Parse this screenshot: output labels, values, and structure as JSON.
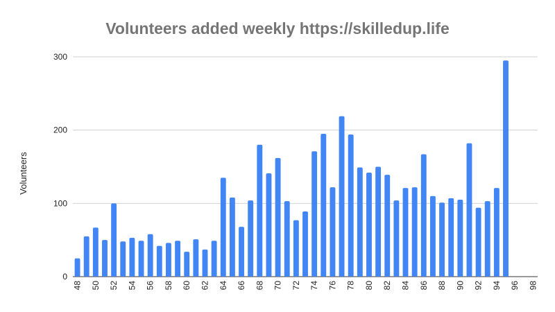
{
  "chart_data": {
    "type": "bar",
    "title": "Volunteers added weekly https://skilledup.life",
    "xlabel": "",
    "ylabel": "Volunteers",
    "ylim": [
      0,
      300
    ],
    "yticks": [
      0,
      100,
      200,
      300
    ],
    "grid": true,
    "bar_color": "#4285f4",
    "categories": [
      48,
      49,
      50,
      51,
      52,
      53,
      54,
      55,
      56,
      57,
      58,
      59,
      60,
      61,
      62,
      63,
      64,
      65,
      66,
      67,
      68,
      69,
      70,
      71,
      72,
      73,
      74,
      75,
      76,
      77,
      78,
      79,
      80,
      81,
      82,
      83,
      84,
      85,
      86,
      87,
      88,
      89,
      90,
      91,
      92,
      93,
      94,
      95,
      96,
      97,
      98
    ],
    "xtick_labels": [
      "48",
      "50",
      "52",
      "54",
      "56",
      "58",
      "60",
      "62",
      "64",
      "66",
      "68",
      "70",
      "72",
      "74",
      "76",
      "78",
      "80",
      "82",
      "84",
      "86",
      "88",
      "90",
      "92",
      "94",
      "96",
      "98"
    ],
    "values": [
      25,
      55,
      67,
      50,
      100,
      48,
      53,
      49,
      58,
      42,
      46,
      49,
      34,
      51,
      37,
      49,
      135,
      108,
      68,
      104,
      180,
      141,
      162,
      103,
      77,
      89,
      171,
      195,
      122,
      219,
      194,
      149,
      142,
      150,
      139,
      104,
      121,
      122,
      167,
      110,
      101,
      107,
      105,
      182,
      94,
      103,
      121,
      295,
      null,
      null,
      null
    ]
  }
}
